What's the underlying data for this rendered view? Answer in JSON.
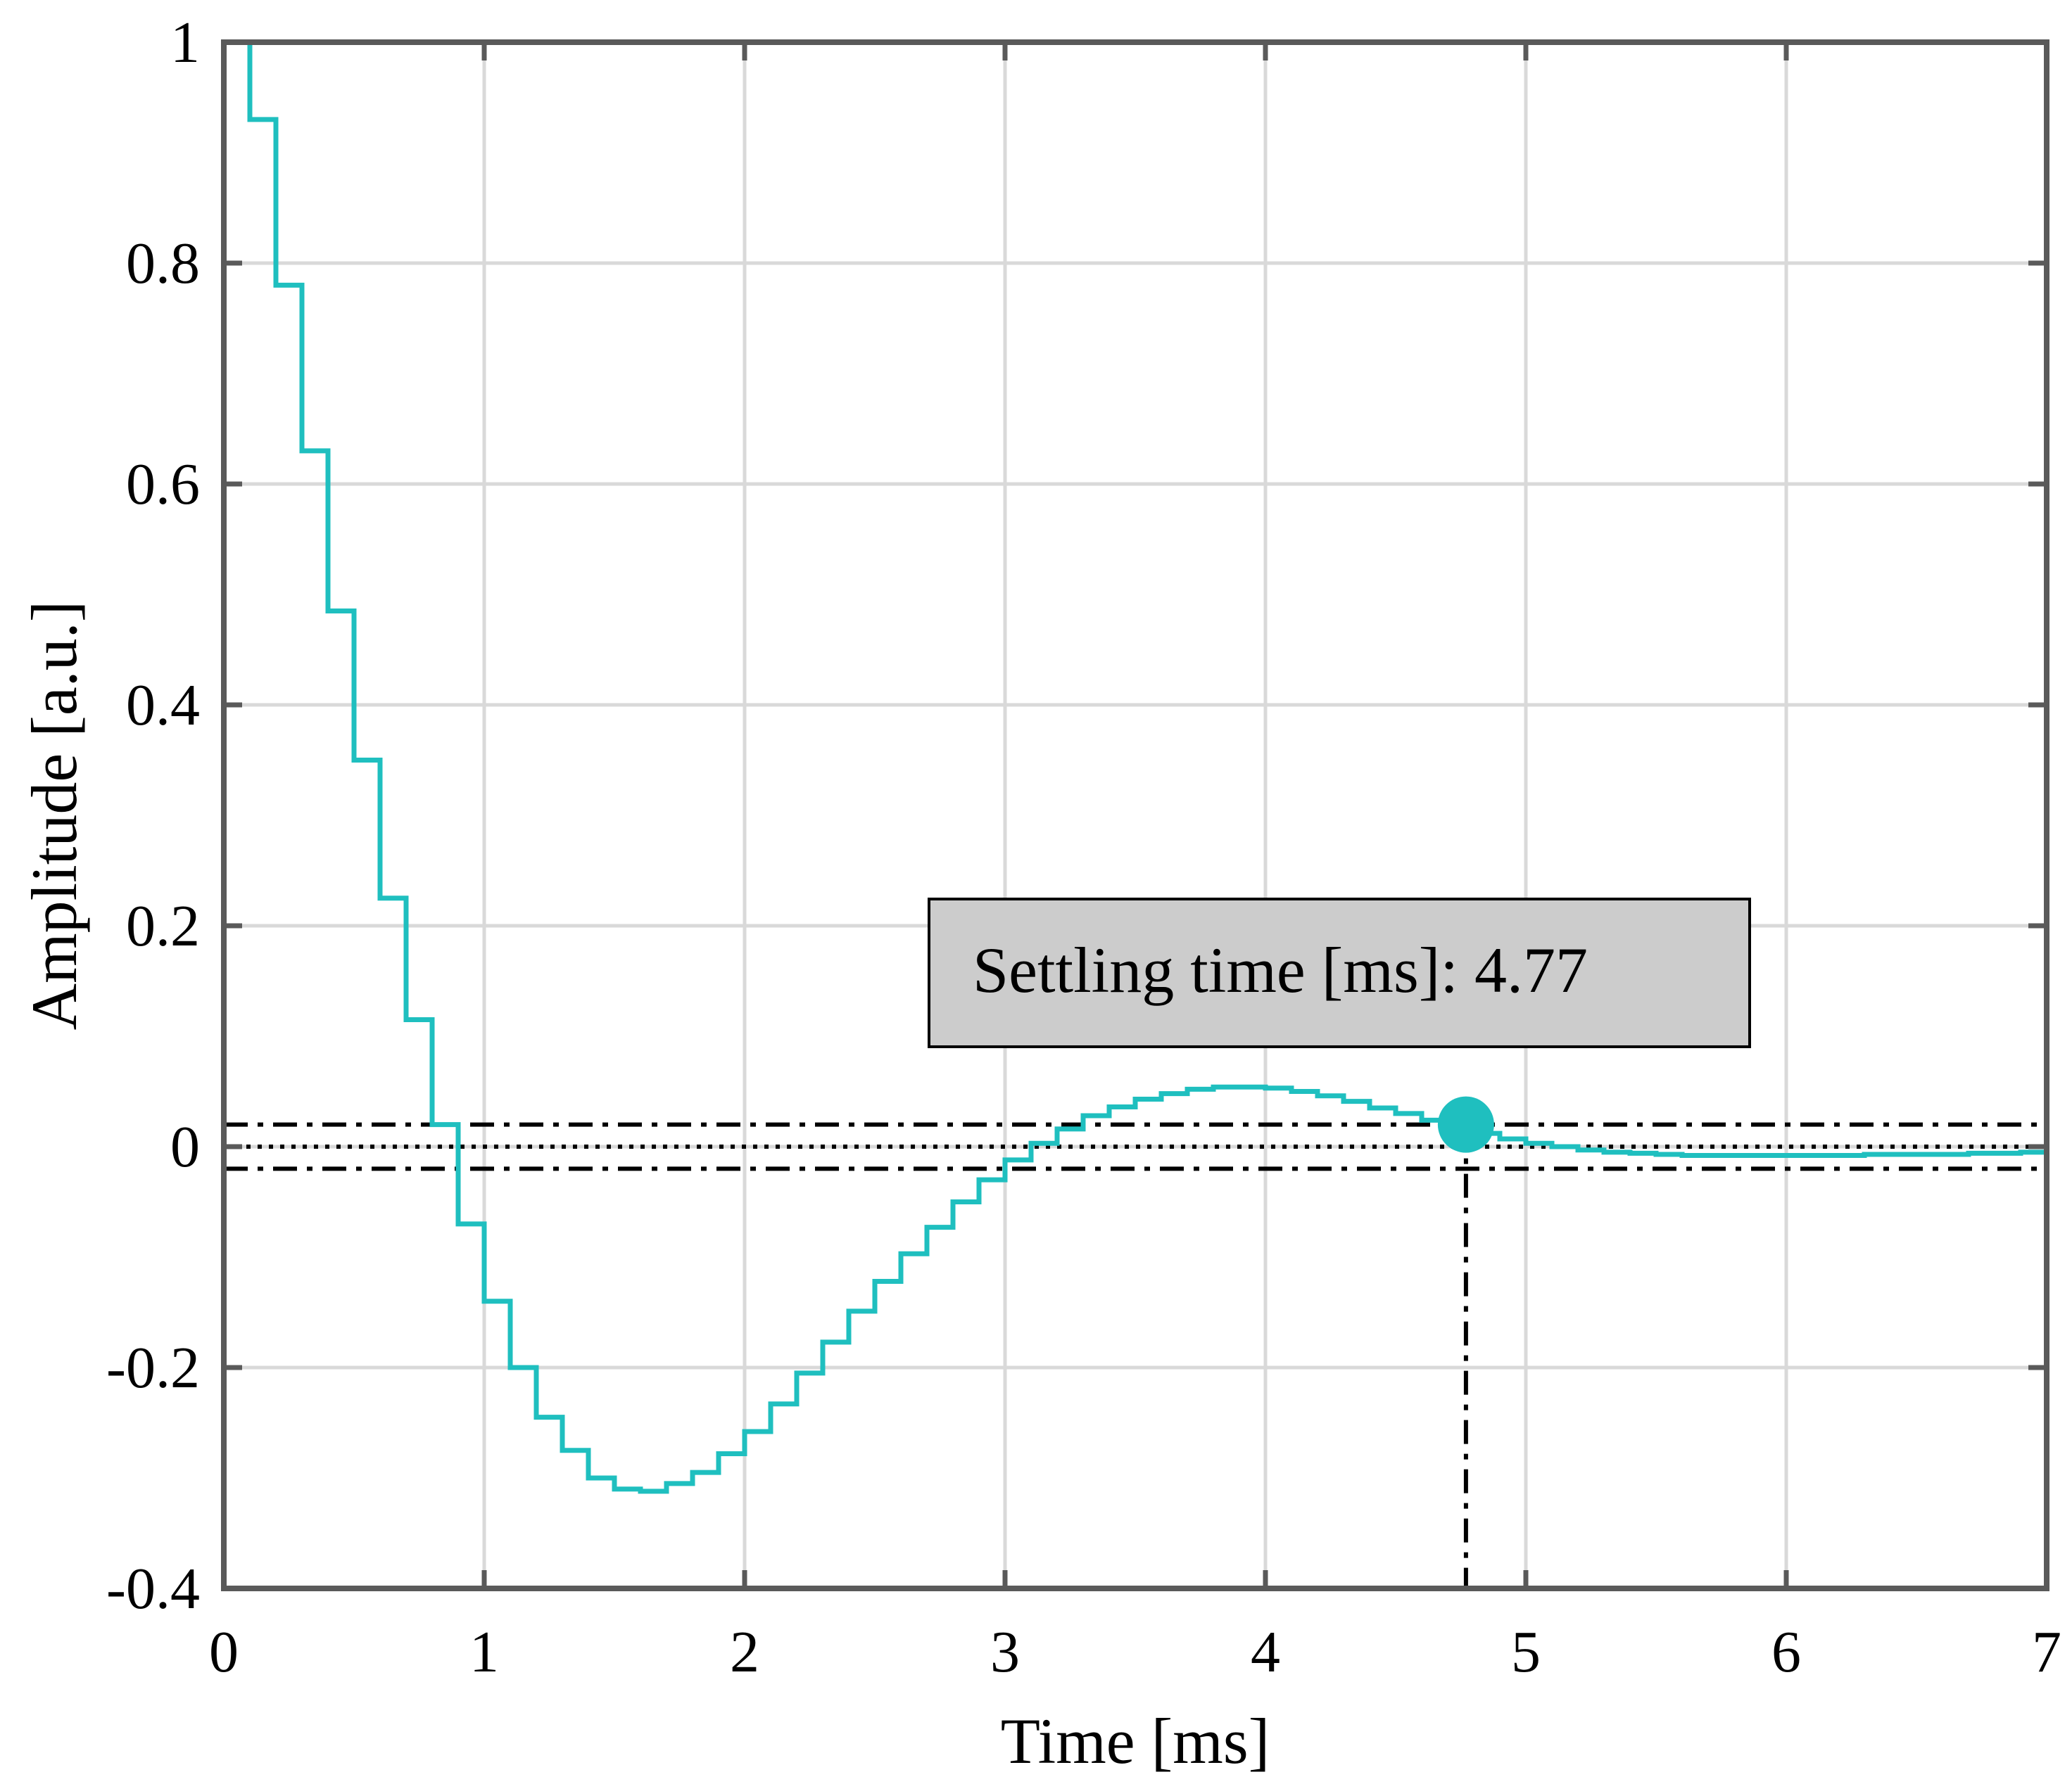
{
  "chart_data": {
    "type": "line",
    "title": "",
    "xlabel": "Time [ms]",
    "ylabel": "Amplitude [a.u.]",
    "xlim": [
      0,
      7
    ],
    "ylim": [
      -0.4,
      1
    ],
    "x_ticks": [
      0,
      1,
      2,
      3,
      4,
      5,
      6,
      7
    ],
    "x_tick_labels": [
      "0",
      "1",
      "2",
      "3",
      "4",
      "5",
      "6",
      "7"
    ],
    "y_ticks": [
      -0.4,
      -0.2,
      0,
      0.2,
      0.4,
      0.6,
      0.8,
      1
    ],
    "y_tick_labels": [
      "-0.4",
      "-0.2",
      "0",
      "0.2",
      "0.4",
      "0.6",
      "0.8",
      "1"
    ],
    "grid": true,
    "colors": {
      "series": "#1fbfbf",
      "axes": "#5a5a5a",
      "grid": "#d9d9d9",
      "reference": "#000000",
      "annotation_bg": "#cccccc"
    },
    "series": [
      {
        "style": "stairs",
        "x": [
          0,
          0.1,
          0.2,
          0.3,
          0.4,
          0.5,
          0.6,
          0.7,
          0.8,
          0.9,
          1.0,
          1.1,
          1.2,
          1.3,
          1.4,
          1.5,
          1.6,
          1.7,
          1.8,
          1.9,
          2.0,
          2.1,
          2.2,
          2.3,
          2.4,
          2.5,
          2.6,
          2.7,
          2.8,
          2.9,
          3.0,
          3.1,
          3.2,
          3.3,
          3.4,
          3.5,
          3.6,
          3.7,
          3.8,
          3.9,
          4.0,
          4.1,
          4.2,
          4.3,
          4.4,
          4.5,
          4.6,
          4.7,
          4.8,
          4.9,
          5.0,
          5.1,
          5.2,
          5.3,
          5.4,
          5.5,
          5.6,
          5.7,
          5.8,
          5.9,
          6.0,
          6.1,
          6.2,
          6.3,
          6.4,
          6.5,
          6.6,
          6.7,
          6.8,
          6.9,
          7.0
        ],
        "y": [
          1.0,
          0.93,
          0.78,
          0.63,
          0.485,
          0.35,
          0.225,
          0.115,
          0.02,
          -0.07,
          -0.14,
          -0.2,
          -0.245,
          -0.275,
          -0.3,
          -0.31,
          -0.312,
          -0.305,
          -0.295,
          -0.278,
          -0.258,
          -0.233,
          -0.205,
          -0.177,
          -0.149,
          -0.122,
          -0.097,
          -0.073,
          -0.05,
          -0.03,
          -0.012,
          0.003,
          0.016,
          0.028,
          0.036,
          0.043,
          0.048,
          0.052,
          0.054,
          0.054,
          0.053,
          0.05,
          0.046,
          0.041,
          0.035,
          0.03,
          0.024,
          0.018,
          0.012,
          0.007,
          0.003,
          0.0,
          -0.003,
          -0.005,
          -0.006,
          -0.007,
          -0.008,
          -0.008,
          -0.008,
          -0.008,
          -0.008,
          -0.008,
          -0.008,
          -0.007,
          -0.007,
          -0.007,
          -0.007,
          -0.006,
          -0.006,
          -0.005,
          -0.005
        ]
      }
    ],
    "reference_lines": [
      {
        "y": 0.02,
        "style": "dashdot"
      },
      {
        "y": 0.0,
        "style": "dotted"
      },
      {
        "y": -0.02,
        "style": "dashdot"
      }
    ],
    "settling": {
      "x": 4.77,
      "y": 0.02,
      "label": "Settling time [ms]: 4.77"
    }
  }
}
